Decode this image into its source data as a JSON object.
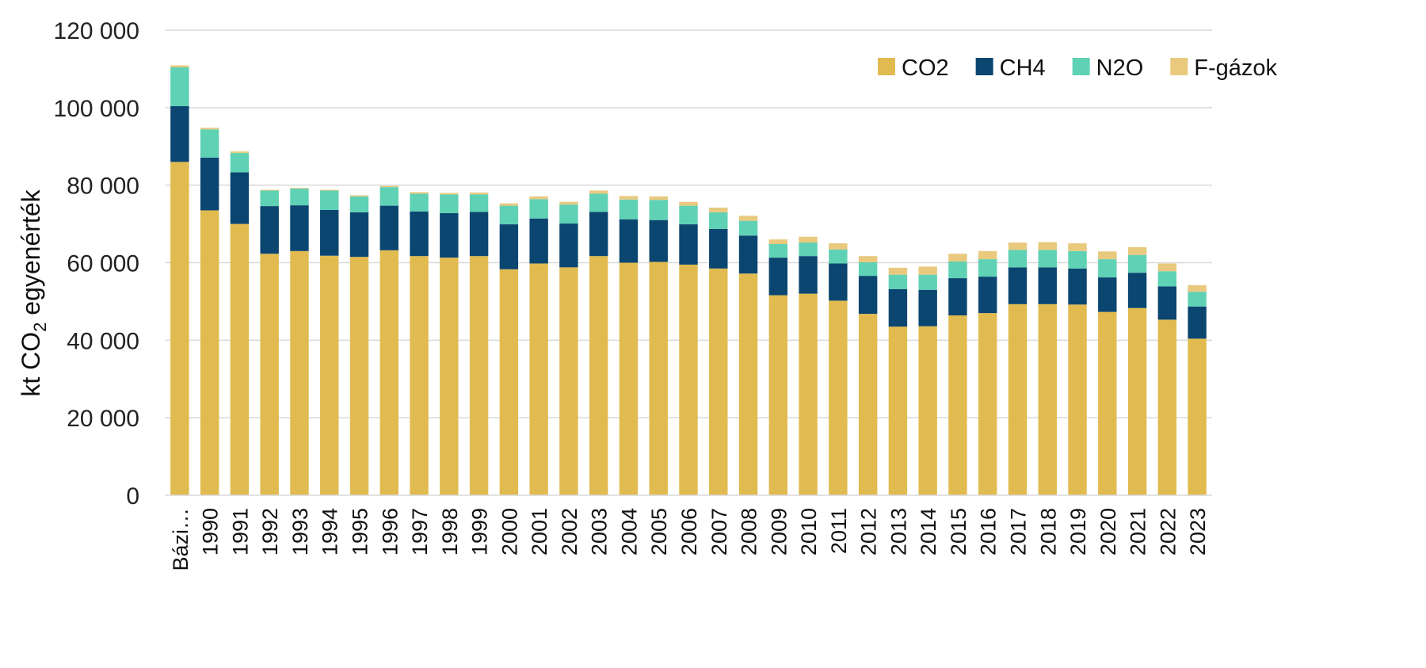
{
  "chart_data": {
    "type": "bar",
    "stacked": true,
    "categories": [
      "Bázi…",
      "1990",
      "1991",
      "1992",
      "1993",
      "1994",
      "1995",
      "1996",
      "1997",
      "1998",
      "1999",
      "2000",
      "2001",
      "2002",
      "2003",
      "2004",
      "2005",
      "2006",
      "2007",
      "2008",
      "2009",
      "2010",
      "2011",
      "2012",
      "2013",
      "2014",
      "2015",
      "2016",
      "2017",
      "2018",
      "2019",
      "2020",
      "2021",
      "2022",
      "2023"
    ],
    "series": [
      {
        "name": "CO2",
        "color": "#e1bb50",
        "values": [
          86000,
          73500,
          70000,
          62300,
          63000,
          61800,
          61500,
          63200,
          61700,
          61300,
          61700,
          58300,
          59800,
          58800,
          61700,
          60000,
          60200,
          59500,
          58500,
          57200,
          51600,
          52000,
          50200,
          46800,
          43500,
          43600,
          46400,
          47000,
          49300,
          49300,
          49200,
          47300,
          48300,
          45300,
          40400
        ]
      },
      {
        "name": "CH4",
        "color": "#0b4671",
        "values": [
          14400,
          13600,
          13300,
          12300,
          11800,
          11800,
          11500,
          11500,
          11500,
          11500,
          11400,
          11600,
          11600,
          11300,
          11400,
          11200,
          10800,
          10400,
          10200,
          9800,
          9700,
          9700,
          9600,
          9800,
          9700,
          9400,
          9600,
          9400,
          9500,
          9500,
          9300,
          8900,
          9100,
          8600,
          8300
        ]
      },
      {
        "name": "N2O",
        "color": "#5fd1b4",
        "values": [
          10000,
          7300,
          5000,
          4000,
          4300,
          5000,
          4100,
          4800,
          4600,
          4800,
          4500,
          4800,
          5000,
          4900,
          4700,
          5100,
          5200,
          4800,
          4300,
          3800,
          3500,
          3500,
          3600,
          3500,
          3700,
          3900,
          4300,
          4500,
          4500,
          4500,
          4500,
          4700,
          4600,
          3900,
          3800
        ]
      },
      {
        "name": "F-gázok",
        "color": "#e8c97e",
        "values": [
          500,
          400,
          400,
          200,
          200,
          200,
          300,
          300,
          400,
          400,
          500,
          600,
          700,
          700,
          800,
          900,
          900,
          1000,
          1200,
          1300,
          1200,
          1500,
          1600,
          1600,
          1800,
          2100,
          2000,
          2100,
          1900,
          2000,
          2000,
          2000,
          2000,
          2000,
          1700
        ]
      }
    ],
    "ylabel_prefix": "kt CO",
    "ylabel_sub": "2",
    "ylabel_suffix": " egyenérték",
    "ylim": [
      0,
      120000
    ],
    "yticks": [
      0,
      20000,
      40000,
      60000,
      80000,
      100000,
      120000
    ],
    "ytick_labels": [
      "0",
      "20 000",
      "40 000",
      "60 000",
      "80 000",
      "100 000",
      "120 000"
    ],
    "grid": "horizontal",
    "legend_position": "top-right"
  }
}
